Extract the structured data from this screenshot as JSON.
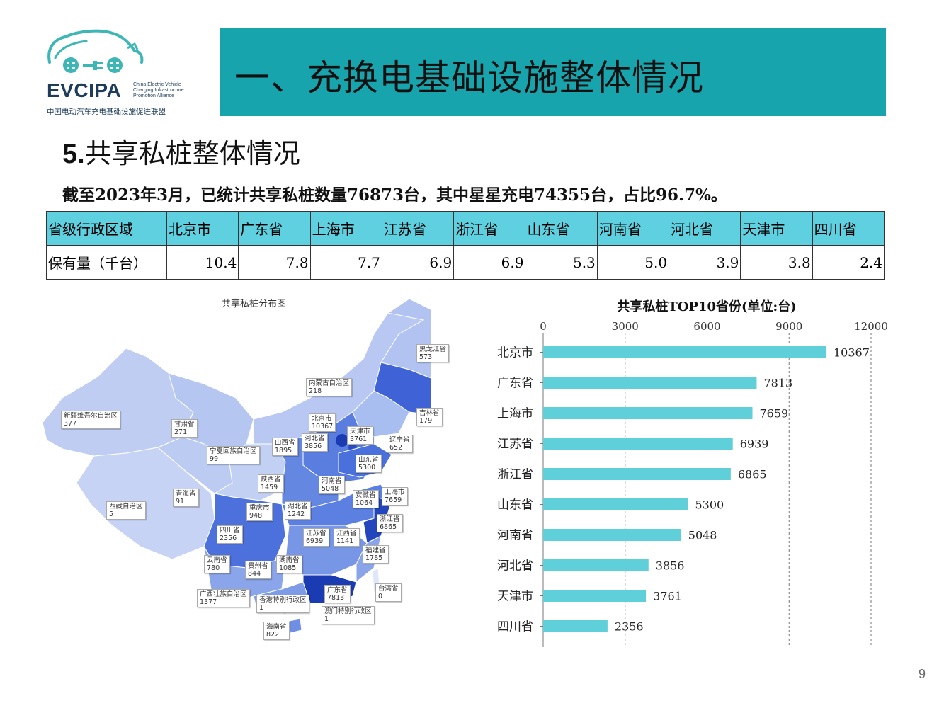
{
  "logo": {
    "name": "EVCIPA",
    "sub": "China Electric Vehicle Charging Infrastructure Promotion Alliance",
    "cn": "中国电动汽车充电基础设施促进联盟"
  },
  "header": {
    "title": "一、充换电基础设施整体情况"
  },
  "section": {
    "num": "5.",
    "title": "共享私桩整体情况"
  },
  "summary": "截至2023年3月，已统计共享私桩数量76873台，其中星星充电74355台，占比96.7%。",
  "table": {
    "row_header": "省级行政区域",
    "row_value_label": "保有量（千台）",
    "provinces": [
      "北京市",
      "广东省",
      "上海市",
      "江苏省",
      "浙江省",
      "山东省",
      "河南省",
      "河北省",
      "天津市",
      "四川省"
    ],
    "values": [
      "10.4",
      "7.8",
      "7.7",
      "6.9",
      "6.9",
      "5.3",
      "5.0",
      "3.9",
      "3.8",
      "2.4"
    ]
  },
  "map": {
    "title": "共享私桩分布图",
    "labels": [
      {
        "name": "黑龙江省",
        "value": "573"
      },
      {
        "name": "内蒙古自治区",
        "value": "218"
      },
      {
        "name": "吉林省",
        "value": "179"
      },
      {
        "name": "新疆维吾尔自治区",
        "value": "377"
      },
      {
        "name": "甘肃省",
        "value": "271"
      },
      {
        "name": "北京市",
        "value": "10367"
      },
      {
        "name": "天津市",
        "value": "3761"
      },
      {
        "name": "辽宁省",
        "value": "652"
      },
      {
        "name": "山西省",
        "value": "1895"
      },
      {
        "name": "河北省",
        "value": "3856"
      },
      {
        "name": "宁夏回族自治区",
        "value": "99"
      },
      {
        "name": "山东省",
        "value": "5300"
      },
      {
        "name": "陕西省",
        "value": "1459"
      },
      {
        "name": "河南省",
        "value": "5048"
      },
      {
        "name": "青海省",
        "value": "91"
      },
      {
        "name": "上海市",
        "value": "7659"
      },
      {
        "name": "安徽省",
        "value": "1064"
      },
      {
        "name": "西藏自治区",
        "value": "5"
      },
      {
        "name": "重庆市",
        "value": "948"
      },
      {
        "name": "湖北省",
        "value": "1242"
      },
      {
        "name": "浙江省",
        "value": "6865"
      },
      {
        "name": "四川省",
        "value": "2356"
      },
      {
        "name": "江苏省",
        "value": "6939"
      },
      {
        "name": "江西省",
        "value": "1141"
      },
      {
        "name": "福建省",
        "value": "1785"
      },
      {
        "name": "云南省",
        "value": "780"
      },
      {
        "name": "贵州省",
        "value": "844"
      },
      {
        "name": "湖南省",
        "value": "1085"
      },
      {
        "name": "台湾省",
        "value": "0"
      },
      {
        "name": "广东省",
        "value": "7813"
      },
      {
        "name": "广西壮族自治区",
        "value": "1377"
      },
      {
        "name": "香港特别行政区",
        "value": "1"
      },
      {
        "name": "澳门特别行政区",
        "value": "1"
      },
      {
        "name": "海南省",
        "value": "822"
      }
    ]
  },
  "chart_data": {
    "type": "bar",
    "orientation": "horizontal",
    "title": "共享私桩TOP10省份(单位:台)",
    "categories": [
      "北京市",
      "广东省",
      "上海市",
      "江苏省",
      "浙江省",
      "山东省",
      "河南省",
      "河北省",
      "天津市",
      "四川省"
    ],
    "values": [
      10367,
      7813,
      7659,
      6939,
      6865,
      5300,
      5048,
      3856,
      3761,
      2356
    ],
    "xlim": [
      0,
      12000
    ],
    "ticks": [
      0,
      3000,
      6000,
      9000,
      12000
    ],
    "axis_position": "top",
    "grid": true,
    "bar_color": "#5fcfda"
  },
  "page": {
    "number": "9"
  }
}
